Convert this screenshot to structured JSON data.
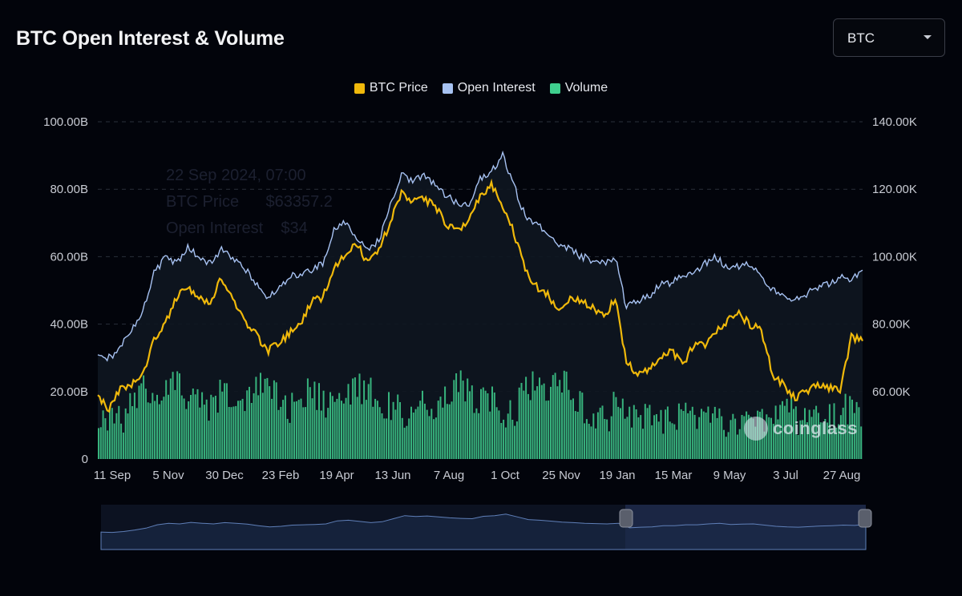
{
  "header": {
    "title": "BTC Open Interest & Volume"
  },
  "selector": {
    "value": "BTC"
  },
  "colors": {
    "price": "#f0b90b",
    "oi": "#a7c2f2",
    "volume": "#3fcf8e",
    "background": "#02040b"
  },
  "watermark": {
    "text": "coinglass"
  },
  "tooltip_ghost": {
    "date": "22 Sep 2024, 07:00",
    "price_label": "BTC Price",
    "price_value": "$63357.2",
    "oi_label": "Open Interest",
    "oi_value": "$34"
  },
  "chart_data": {
    "type": "line",
    "legend": [
      {
        "name": "BTC Price",
        "color": "#f0b90b"
      },
      {
        "name": "Open Interest",
        "color": "#a7c2f2"
      },
      {
        "name": "Volume",
        "color": "#3fcf8e"
      }
    ],
    "legend_position": "top-center",
    "x_tick_labels": [
      "11 Sep",
      "5 Nov",
      "30 Dec",
      "23 Feb",
      "19 Apr",
      "13 Jun",
      "7 Aug",
      "1 Oct",
      "25 Nov",
      "19 Jan",
      "15 Mar",
      "9 May",
      "3 Jul",
      "27 Aug"
    ],
    "y_left": {
      "ticks": [
        "0",
        "20.00B",
        "40.00B",
        "60.00B",
        "80.00B",
        "100.00B"
      ],
      "range": [
        0,
        100
      ]
    },
    "y_right": {
      "ticks": [
        "60.00K",
        "80.00K",
        "100.00K",
        "120.00K",
        "140.00K"
      ],
      "range": [
        40,
        140
      ]
    },
    "grid": "horizontal dashed",
    "series": [
      {
        "name": "Open Interest",
        "axis": "left",
        "unit": "B",
        "values": [
          31,
          30,
          33,
          38,
          44,
          55,
          60,
          58,
          63,
          60,
          58,
          62,
          60,
          57,
          52,
          48,
          50,
          54,
          55,
          56,
          58,
          68,
          70,
          66,
          62,
          65,
          75,
          85,
          82,
          84,
          81,
          78,
          76,
          75,
          83,
          85,
          90,
          81,
          72,
          70,
          67,
          64,
          62,
          60,
          59,
          58,
          60,
          45,
          47,
          48,
          52,
          52,
          55,
          55,
          58,
          60,
          56,
          57,
          58,
          54,
          50,
          48,
          47,
          49,
          51,
          52,
          54,
          53,
          56
        ]
      },
      {
        "name": "BTC Price",
        "axis": "right",
        "unit": "K",
        "values": [
          58,
          55,
          61,
          62,
          65,
          75,
          80,
          88,
          91,
          88,
          86,
          94,
          88,
          81,
          77,
          72,
          74,
          77,
          80,
          87,
          88,
          96,
          101,
          104,
          98,
          102,
          110,
          119,
          116,
          117,
          115,
          109,
          108,
          111,
          118,
          121,
          115,
          107,
          96,
          91,
          89,
          84,
          88,
          87,
          85,
          82,
          88,
          69,
          65,
          67,
          70,
          72,
          68,
          74,
          74,
          78,
          81,
          83,
          80,
          78,
          65,
          62,
          58,
          60,
          62,
          61,
          60,
          76,
          75
        ]
      },
      {
        "name": "Volume",
        "axis": "left",
        "unit": "B",
        "values": [
          10,
          14,
          12,
          16,
          22,
          18,
          20,
          22,
          17,
          18,
          15,
          20,
          18,
          16,
          22,
          24,
          17,
          15,
          18,
          20,
          16,
          15,
          18,
          20,
          22,
          17,
          16,
          14,
          13,
          16,
          14,
          18,
          24,
          18,
          16,
          18,
          12,
          14,
          20,
          22,
          18,
          24,
          19,
          15,
          13,
          11,
          16,
          12,
          14,
          12,
          10,
          11,
          12,
          13,
          14,
          12,
          10,
          9,
          11,
          12,
          14,
          15,
          12,
          10,
          11,
          12,
          14,
          15,
          12
        ]
      }
    ]
  }
}
